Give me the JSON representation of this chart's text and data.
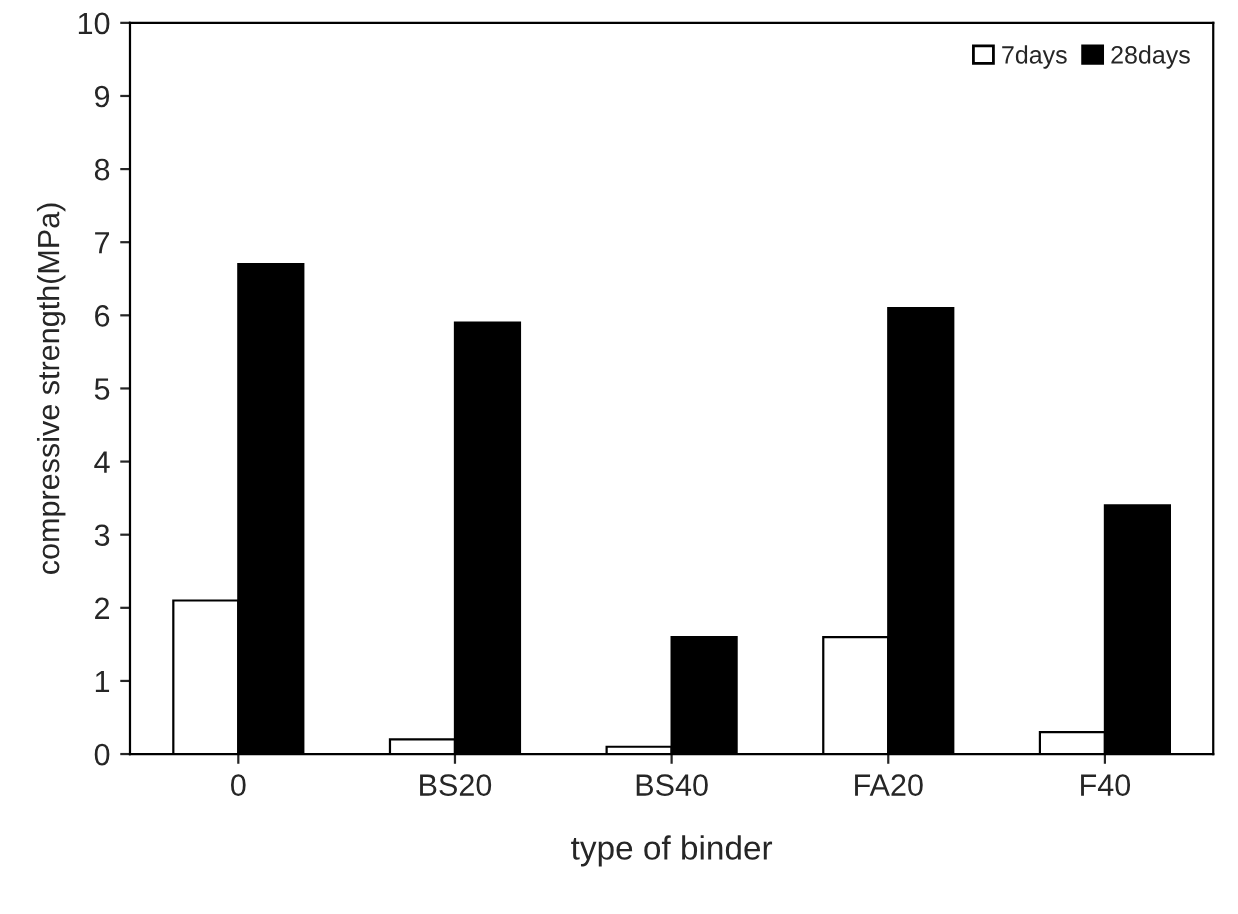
{
  "chart_data": {
    "type": "bar",
    "xlabel": "type of binder",
    "ylabel": "compressive strength(MPa)",
    "categories": [
      "0",
      "BS20",
      "BS40",
      "FA20",
      "F40"
    ],
    "series": [
      {
        "name": "7days",
        "color": "#ffffff",
        "values": [
          2.1,
          0.2,
          0.1,
          1.6,
          0.3
        ]
      },
      {
        "name": "28days",
        "color": "#000000",
        "values": [
          6.7,
          5.9,
          1.6,
          6.1,
          3.4
        ]
      }
    ],
    "ylim": [
      0,
      10
    ],
    "yticks": [
      0,
      1,
      2,
      3,
      4,
      5,
      6,
      7,
      8,
      9,
      10
    ],
    "grid": false,
    "legend": "top right"
  }
}
